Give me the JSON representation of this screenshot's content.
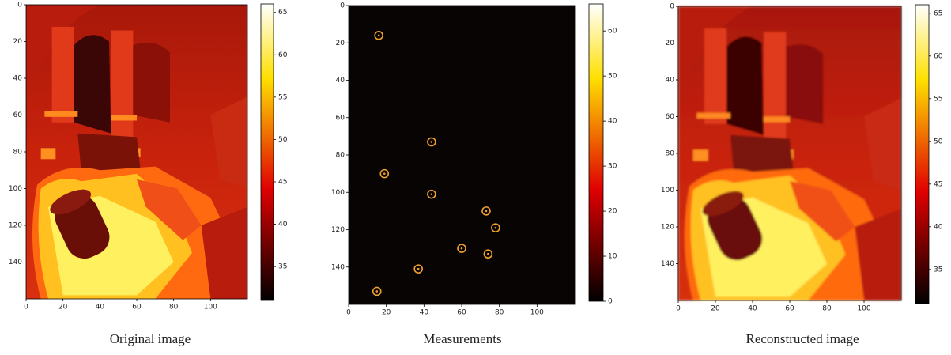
{
  "chart_data": [
    {
      "type": "heatmap",
      "caption": "Original image",
      "xlim": [
        0,
        120
      ],
      "ylim": [
        160,
        0
      ],
      "xticks": [
        0,
        20,
        40,
        60,
        80,
        100
      ],
      "yticks": [
        0,
        20,
        40,
        60,
        80,
        100,
        120,
        140
      ],
      "colorbar": {
        "colormap": "hot",
        "lim": [
          31,
          66
        ],
        "ticks": [
          35,
          40,
          45,
          50,
          55,
          60,
          65
        ]
      }
    },
    {
      "type": "scatter",
      "caption": "Measurements",
      "xlim": [
        0,
        120
      ],
      "ylim": [
        160,
        0
      ],
      "xticks": [
        0,
        20,
        40,
        60,
        80,
        100
      ],
      "yticks": [
        0,
        20,
        40,
        60,
        80,
        100,
        120,
        140
      ],
      "x": [
        16,
        44,
        19,
        44,
        73,
        78,
        60,
        74,
        37,
        15
      ],
      "values": [
        16,
        73,
        90,
        101,
        110,
        119,
        130,
        133,
        141,
        153
      ],
      "color": "#f0a030",
      "colorbar": {
        "colormap": "hot",
        "lim": [
          0,
          66
        ],
        "ticks": [
          0,
          10,
          20,
          30,
          40,
          50,
          60
        ]
      }
    },
    {
      "type": "heatmap",
      "caption": "Reconstructed image",
      "xlim": [
        0,
        120
      ],
      "ylim": [
        160,
        0
      ],
      "xticks": [
        0,
        20,
        40,
        60,
        80,
        100
      ],
      "yticks": [
        0,
        20,
        40,
        60,
        80,
        100,
        120,
        140
      ],
      "colorbar": {
        "colormap": "hot",
        "lim": [
          31,
          66
        ],
        "ticks": [
          35,
          40,
          45,
          50,
          55,
          60,
          65
        ]
      }
    }
  ]
}
